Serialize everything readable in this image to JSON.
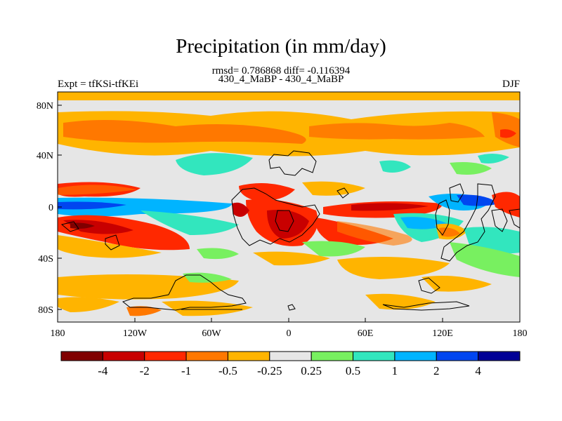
{
  "title": "Precipitation (in mm/day)",
  "stats": "rmsd= 0.786868 diff= -0.116394",
  "subtitle": "430_4_MaBP - 430_4_MaBP",
  "left_label": "Expt = tfKSi-tfKEi",
  "right_label": "DJF",
  "map": {
    "lon_ticks": [
      "180",
      "120W",
      "60W",
      "0",
      "60E",
      "120E",
      "180"
    ],
    "lat_ticks": [
      "80N",
      "40N",
      "0",
      "40S",
      "80S"
    ]
  },
  "colorbar": {
    "colors": [
      "#800000",
      "#c80000",
      "#ff2800",
      "#ff7800",
      "#ffb400",
      "#e6e6e6",
      "#78f060",
      "#32e6be",
      "#00b4ff",
      "#0046f0",
      "#000096"
    ],
    "labels": [
      "-4",
      "-2",
      "-1",
      "-0.5",
      "-0.25",
      "0.25",
      "0.5",
      "1",
      "2",
      "4"
    ]
  }
}
